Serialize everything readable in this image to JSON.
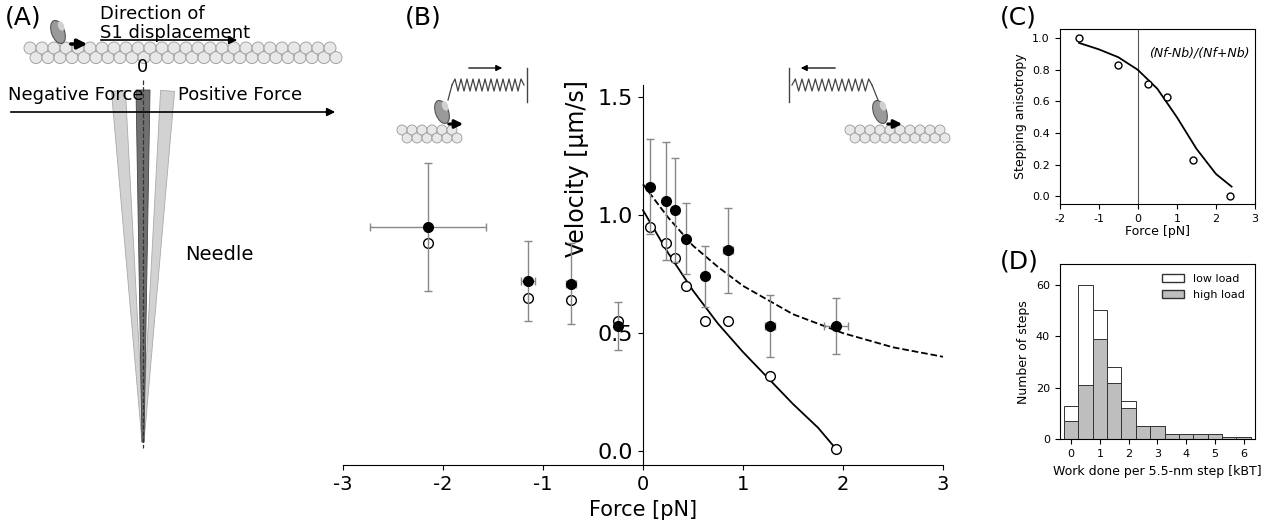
{
  "panel_labels": [
    "(A)",
    "(B)",
    "(C)",
    "(D)"
  ],
  "diagram": {
    "arrow_label": "Direction of\nS1 displacement",
    "zero_label": "0",
    "negative_label": "Negative Force",
    "positive_label": "Positive Force",
    "needle_label": "Needle"
  },
  "chart_data": [
    {
      "type": "scatter",
      "x_label": "Force [pN]",
      "y_label": "Velocity [µm/s]",
      "xlim": [
        -3,
        3
      ],
      "xticks": [
        -3,
        -2,
        -1,
        0,
        1,
        2,
        3
      ],
      "ylim": [
        -0.06,
        1.55
      ],
      "yticks": [
        0.0,
        0.5,
        1.0,
        1.5
      ],
      "series": [
        {
          "type": "line",
          "line_style": "solid",
          "color": "#000000",
          "x": [
            0.0,
            0.25,
            0.5,
            0.75,
            1.0,
            1.25,
            1.5,
            1.75,
            1.95
          ],
          "values": [
            1.02,
            0.84,
            0.68,
            0.54,
            0.42,
            0.31,
            0.2,
            0.1,
            0.0
          ]
        },
        {
          "type": "line",
          "line_style": "dashed",
          "color": "#000000",
          "x": [
            0.0,
            0.25,
            0.5,
            0.75,
            1.0,
            1.5,
            2.0,
            2.5,
            3.0
          ],
          "values": [
            1.13,
            0.99,
            0.87,
            0.78,
            0.7,
            0.58,
            0.5,
            0.44,
            0.4
          ]
        },
        {
          "type": "scatter",
          "marker": "open_circle",
          "color": "#000000",
          "x": [
            -2.15,
            -1.15,
            -0.72,
            -0.25,
            0.07,
            0.23,
            0.32,
            0.43,
            0.62,
            0.85,
            1.27,
            1.93
          ],
          "values": [
            0.88,
            0.65,
            0.64,
            0.55,
            0.95,
            0.88,
            0.82,
            0.7,
            0.55,
            0.55,
            0.32,
            0.01
          ]
        },
        {
          "type": "scatter",
          "marker": "filled_circle",
          "color": "#000000",
          "x": [
            -2.15,
            -1.15,
            -0.72,
            -0.25,
            0.07,
            0.23,
            0.32,
            0.43,
            0.62,
            0.85,
            1.27,
            1.93
          ],
          "values": [
            0.95,
            0.72,
            0.71,
            0.53,
            1.12,
            1.06,
            1.02,
            0.9,
            0.74,
            0.85,
            0.53,
            0.53
          ],
          "x_error": [
            0.58,
            0.07,
            0.05,
            0.03,
            0.03,
            0.03,
            0.03,
            0.03,
            0.03,
            0.05,
            0.05,
            0.12
          ],
          "y_error": [
            0.27,
            0.17,
            0.17,
            0.1,
            0.2,
            0.25,
            0.22,
            0.15,
            0.13,
            0.18,
            0.13,
            0.12
          ]
        }
      ]
    },
    {
      "type": "scatter",
      "x_label": "Force [pN]",
      "y_label": "Stepping anisotropy",
      "annotation": "(Nf-Nb)/(Nf+Nb)",
      "reference_x": 0,
      "xlim": [
        -2,
        3
      ],
      "xticks": [
        -2,
        -1,
        0,
        1,
        2,
        3
      ],
      "ylim": [
        -0.05,
        1.06
      ],
      "yticks": [
        0.0,
        0.2,
        0.4,
        0.6,
        0.8,
        1.0
      ],
      "series": [
        {
          "type": "line",
          "line_style": "solid",
          "color": "#000000",
          "x": [
            -1.5,
            -1.0,
            -0.5,
            0.0,
            0.5,
            1.0,
            1.5,
            2.0,
            2.4
          ],
          "values": [
            0.97,
            0.93,
            0.88,
            0.8,
            0.68,
            0.5,
            0.3,
            0.14,
            0.06
          ]
        },
        {
          "type": "scatter",
          "marker": "open_circle",
          "color": "#000000",
          "x": [
            -1.5,
            -0.5,
            0.25,
            0.75,
            1.4,
            2.35
          ],
          "values": [
            1.0,
            0.83,
            0.71,
            0.63,
            0.23,
            0.0
          ]
        }
      ]
    },
    {
      "type": "histogram",
      "x_label": "Work done per 5.5-nm step [kBT]",
      "y_label": "Number of steps",
      "bins": [
        -0.25,
        0.25,
        0.75,
        1.25,
        1.75,
        2.25,
        2.75,
        3.25,
        3.75,
        4.25,
        4.75,
        5.25,
        5.75,
        6.25
      ],
      "xlim": [
        -0.4,
        6.4
      ],
      "xticks": [
        0,
        1,
        2,
        3,
        4,
        5,
        6
      ],
      "ylim": [
        0,
        68
      ],
      "yticks": [
        0,
        20,
        40,
        60
      ],
      "legend": "upper right",
      "series": [
        {
          "name": "low load",
          "color": "#ffffff",
          "values": [
            13,
            60,
            50,
            28,
            15,
            5,
            5,
            2,
            2,
            2,
            2,
            1,
            1
          ]
        },
        {
          "name": "high load",
          "color": "#bebebe",
          "values": [
            7,
            21,
            39,
            22,
            12,
            5,
            5,
            2,
            2,
            2,
            2,
            1,
            1
          ]
        }
      ]
    }
  ]
}
